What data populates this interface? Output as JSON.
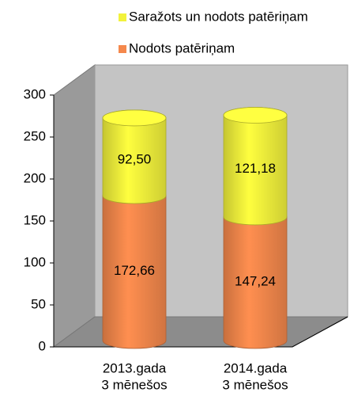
{
  "chart_data": {
    "type": "stacked-cylinder",
    "categories": [
      [
        "2013.gada",
        "3 mēnešos"
      ],
      [
        "2014.gada",
        "3 mēnešos"
      ]
    ],
    "series": [
      {
        "name": "Nodots patēriņam",
        "color": "#f5884c",
        "values": [
          172.66,
          147.24
        ],
        "value_labels": [
          "172,66",
          "147,24"
        ]
      },
      {
        "name": "Saražots un nodots patēriņam",
        "color": "#f2f23c",
        "values": [
          92.5,
          121.18
        ],
        "value_labels": [
          "92,50",
          "121,18"
        ]
      }
    ],
    "ylim": [
      0,
      300
    ],
    "yticks": [
      0,
      50,
      100,
      150,
      200,
      250,
      300
    ],
    "grid": false
  }
}
